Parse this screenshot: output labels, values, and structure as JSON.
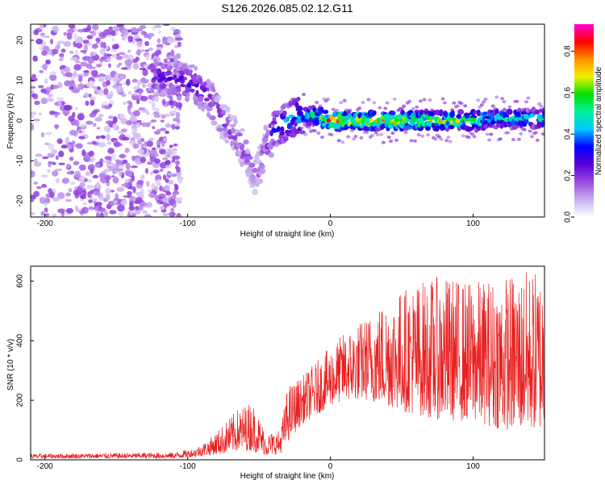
{
  "figure_title": "S126.2026.085.02.12.G11",
  "colors": {
    "snr_line": "#e82020",
    "colormap": [
      "#ffffff",
      "#c8b0f0",
      "#9a4ae0",
      "#5a00d8",
      "#0000ff",
      "#00c8ff",
      "#00f0a0",
      "#00e000",
      "#f0f000",
      "#ff9000",
      "#ff0000",
      "#ff00d0"
    ]
  },
  "chart_data": [
    {
      "type": "heatmap",
      "title": "",
      "xlabel": "Height of straight line (km)",
      "ylabel": "Frequency (Hz)",
      "xlim": [
        -210,
        150
      ],
      "ylim": [
        -24,
        24
      ],
      "xticks": [
        "-200",
        "-100",
        "0",
        "100"
      ],
      "yticks": [
        "20",
        "10",
        "0",
        "-10",
        "-20"
      ],
      "colorbar": {
        "label": "Normalized spectral amplitude",
        "range": [
          0.0,
          0.93
        ],
        "ticks": [
          "0.0",
          "0.2",
          "0.4",
          "0.6",
          "0.8"
        ]
      },
      "ridge_track": {
        "x": [
          -125,
          -110,
          -95,
          -85,
          -75,
          -65,
          -58,
          -52,
          -45,
          -38,
          -30,
          -20,
          -10,
          0,
          20,
          50,
          80,
          100,
          120,
          150
        ],
        "frequency": [
          11,
          10,
          9,
          6,
          0,
          -5,
          -9,
          -14,
          -6,
          -2,
          0,
          1.5,
          1,
          0,
          0,
          0,
          0,
          0,
          0.5,
          0.5
        ],
        "amplitude": [
          0.25,
          0.28,
          0.3,
          0.25,
          0.2,
          0.2,
          0.18,
          0.15,
          0.2,
          0.35,
          0.45,
          0.5,
          0.6,
          0.85,
          0.8,
          0.75,
          0.7,
          0.65,
          0.55,
          0.5
        ]
      },
      "noise_region_x": [
        -210,
        -105
      ]
    },
    {
      "type": "line",
      "title": "",
      "xlabel": "Height of straight line (km)",
      "ylabel": "SNR (10 * v/v)",
      "xlim": [
        -210,
        150
      ],
      "ylim": [
        0,
        650
      ],
      "xticks": [
        "-200",
        "-100",
        "0",
        "100"
      ],
      "yticks": [
        "600",
        "400",
        "200",
        "0"
      ],
      "series": [
        {
          "name": "SNR",
          "envelope": {
            "x": [
              -210,
              -110,
              -95,
              -85,
              -75,
              -65,
              -55,
              -45,
              -35,
              -30,
              -20,
              -10,
              0,
              10,
              25,
              40,
              60,
              80,
              100,
              120,
              140,
              150
            ],
            "min": [
              5,
              5,
              10,
              15,
              20,
              30,
              30,
              15,
              20,
              60,
              120,
              150,
              180,
              200,
              200,
              180,
              150,
              130,
              130,
              100,
              100,
              100
            ],
            "max": [
              20,
              25,
              40,
              70,
              120,
              170,
              200,
              90,
              100,
              250,
              280,
              330,
              380,
              430,
              480,
              550,
              600,
              620,
              600,
              620,
              640,
              640
            ]
          }
        }
      ]
    }
  ]
}
